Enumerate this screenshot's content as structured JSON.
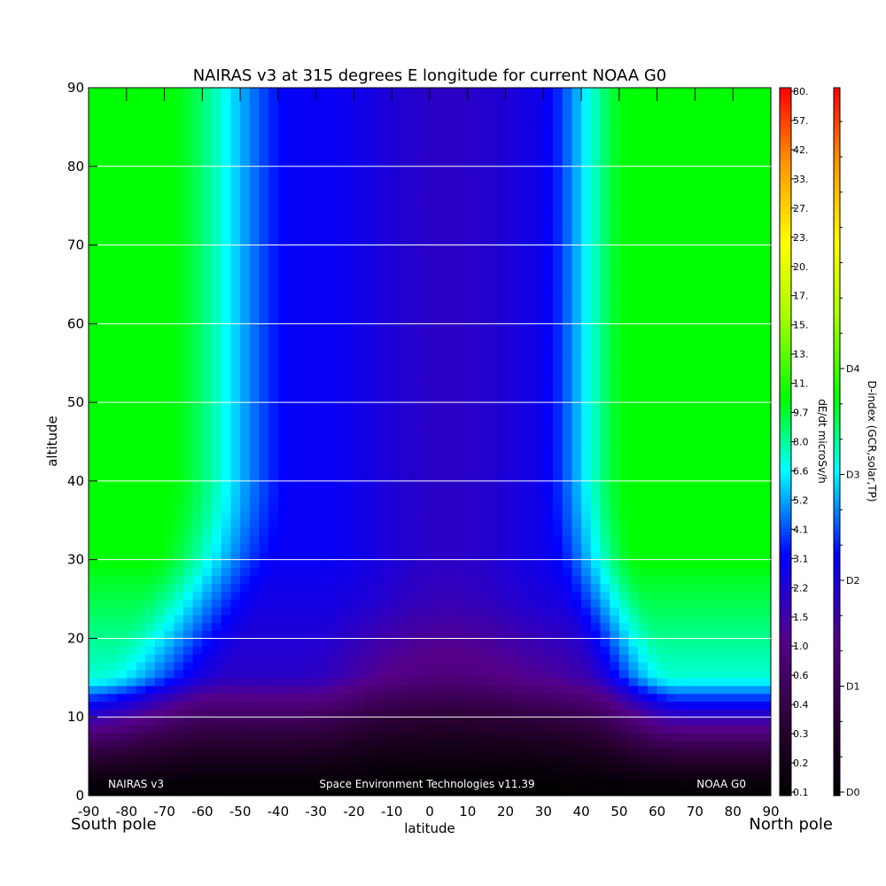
{
  "chart_data": {
    "type": "heatmap",
    "title": "NAIRAS v3 at 315 degrees E longitude for current NOAA G0",
    "xlabel": "latitude",
    "ylabel": "altitude",
    "xlim": [
      -90,
      90
    ],
    "ylim": [
      0,
      90
    ],
    "x_ticks": [
      "-90",
      "-80",
      "-70",
      "-60",
      "-50",
      "-40",
      "-30",
      "-20",
      "-10",
      "0",
      "10",
      "20",
      "30",
      "40",
      "50",
      "60",
      "70",
      "80",
      "90"
    ],
    "y_ticks": [
      "0",
      "10",
      "20",
      "30",
      "40",
      "50",
      "60",
      "70",
      "80",
      "90"
    ],
    "grid": "horizontal lines every 10 altitude units",
    "pole_labels": {
      "south": "South pole",
      "north": "North pole"
    },
    "annotations": {
      "left": "NAIRAS v3",
      "center": "Space Environment Technologies v11.39",
      "right": "NOAA G0"
    },
    "colorbar_dose": {
      "label": "dE/dt microSv/h",
      "ticks": [
        "0.1",
        "0.2",
        "0.3",
        "0.4",
        "0.6",
        "1.0",
        "1.5",
        "2.2",
        "3.1",
        "4.1",
        "5.2",
        "6.6",
        "8.0",
        "9.7",
        "11.",
        "13.",
        "15.",
        "17.",
        "20.",
        "23.",
        "27.",
        "33.",
        "42.",
        "57.",
        "80."
      ]
    },
    "colorbar_dindex": {
      "label": "D-index (GCR,solar,TP)",
      "ticks": [
        "D0",
        "D1",
        "D2",
        "D3",
        "D4"
      ]
    },
    "approx_field": {
      "description_of_values": "approximate dose rate index per (latitude, altitude); 0 = darkest, 1 = green",
      "latitudes": [
        -90,
        -70,
        -60,
        -50,
        -40,
        -30,
        -20,
        -10,
        0,
        10,
        20,
        30,
        35,
        40,
        50,
        70,
        90
      ],
      "altitudes": [
        0,
        5,
        10,
        15,
        20,
        30,
        40,
        60,
        90
      ],
      "levels_at_90km_profile": [
        0.95,
        0.95,
        0.9,
        0.72,
        0.48,
        0.38,
        0.33,
        0.28,
        0.24,
        0.24,
        0.26,
        0.35,
        0.55,
        0.85,
        0.95,
        0.95,
        0.95
      ]
    }
  }
}
